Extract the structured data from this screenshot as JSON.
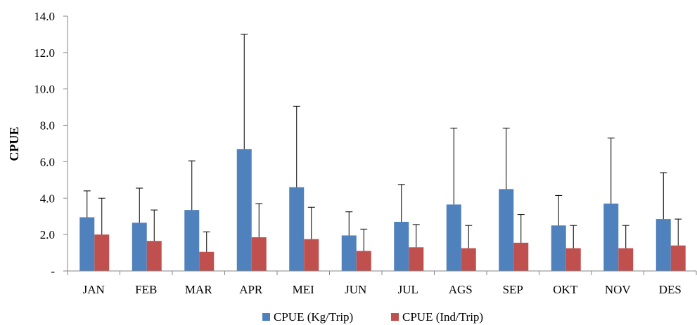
{
  "chart_data": {
    "type": "bar",
    "ylabel": "CPUE",
    "ylim": [
      0,
      14
    ],
    "yticks": [
      {
        "value": 0,
        "label": "-"
      },
      {
        "value": 2,
        "label": "2.0"
      },
      {
        "value": 4,
        "label": "4.0"
      },
      {
        "value": 6,
        "label": "6.0"
      },
      {
        "value": 8,
        "label": "8.0"
      },
      {
        "value": 10,
        "label": "10.0"
      },
      {
        "value": 12,
        "label": "12.0"
      },
      {
        "value": 14,
        "label": "14.0"
      }
    ],
    "categories": [
      "JAN",
      "FEB",
      "MAR",
      "APR",
      "MEI",
      "JUN",
      "JUL",
      "AGS",
      "SEP",
      "OKT",
      "NOV",
      "DES"
    ],
    "series": [
      {
        "name": "CPUE (Kg/Trip)",
        "color": "#4f81bd",
        "values": [
          2.95,
          2.65,
          3.35,
          6.7,
          4.6,
          1.95,
          2.7,
          3.65,
          4.5,
          2.5,
          3.7,
          2.85
        ],
        "error_upper": [
          4.4,
          4.55,
          6.05,
          13.0,
          9.05,
          3.25,
          4.75,
          7.85,
          7.85,
          4.15,
          7.3,
          5.4
        ]
      },
      {
        "name": "CPUE (Ind/Trip)",
        "color": "#c0504d",
        "values": [
          2.0,
          1.65,
          1.05,
          1.85,
          1.75,
          1.1,
          1.3,
          1.25,
          1.55,
          1.25,
          1.25,
          1.4
        ],
        "error_upper": [
          4.0,
          3.35,
          2.15,
          3.7,
          3.5,
          2.3,
          2.55,
          2.5,
          3.1,
          2.5,
          2.5,
          2.85
        ]
      }
    ],
    "grid": false,
    "legend_position": "bottom"
  }
}
